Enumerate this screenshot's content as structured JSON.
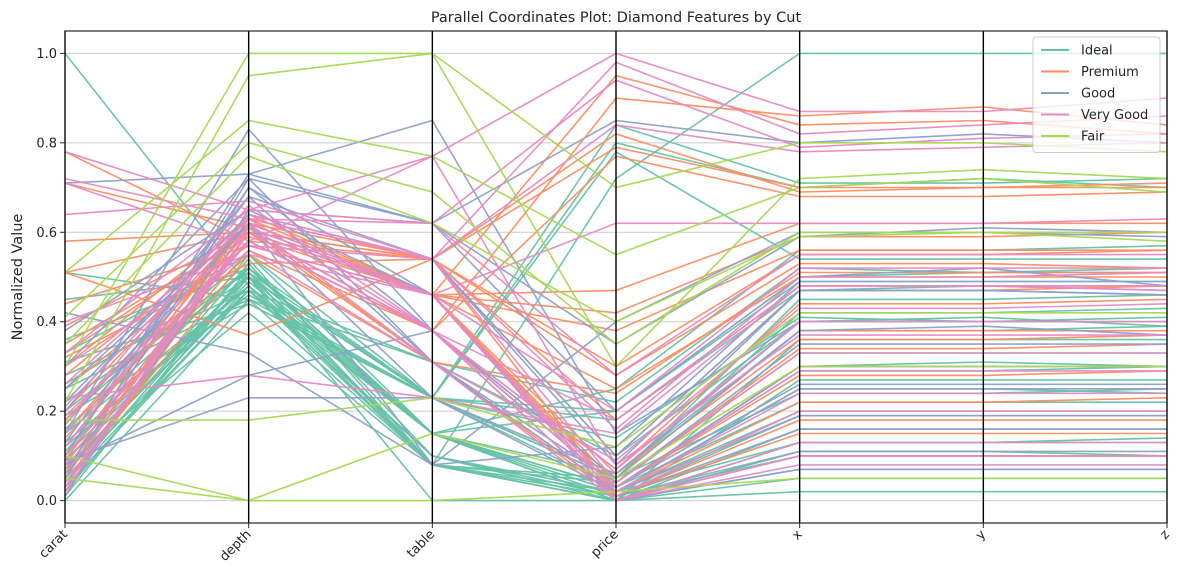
{
  "chart_data": {
    "type": "parallel_coordinates",
    "title": "Parallel Coordinates Plot: Diamond Features by Cut",
    "ylabel": "Normalized Value",
    "xlabel": "",
    "axes": [
      "carat",
      "depth",
      "table",
      "price",
      "x",
      "y",
      "z"
    ],
    "ylim": [
      -0.05,
      1.05
    ],
    "yticks": [
      0.0,
      0.2,
      0.4,
      0.6,
      0.8,
      1.0
    ],
    "ytick_labels": [
      "0.0",
      "0.2",
      "0.4",
      "0.6",
      "0.8",
      "1.0"
    ],
    "grid": "horizontal",
    "legend_position": "top-right",
    "series": [
      {
        "name": "Ideal",
        "color": "#66c2a5",
        "lines": [
          [
            1.0,
            0.48,
            0.08,
            0.72,
            1.0,
            1.0,
            1.0
          ],
          [
            0.51,
            0.45,
            0.23,
            0.8,
            0.7,
            0.72,
            0.7
          ],
          [
            0.45,
            0.5,
            0.23,
            0.84,
            0.71,
            0.71,
            0.72
          ],
          [
            0.12,
            0.48,
            0.15,
            0.0,
            0.36,
            0.36,
            0.36
          ],
          [
            0.04,
            0.47,
            0.1,
            0.01,
            0.11,
            0.11,
            0.1
          ],
          [
            0.06,
            0.53,
            0.1,
            0.02,
            0.13,
            0.13,
            0.14
          ],
          [
            0.2,
            0.52,
            0.23,
            0.05,
            0.45,
            0.45,
            0.46
          ],
          [
            0.25,
            0.45,
            0.31,
            0.1,
            0.4,
            0.41,
            0.39
          ],
          [
            0.33,
            0.55,
            0.15,
            0.2,
            0.5,
            0.51,
            0.52
          ],
          [
            0.08,
            0.42,
            0.08,
            0.02,
            0.25,
            0.25,
            0.24
          ],
          [
            0.1,
            0.5,
            0.15,
            0.03,
            0.29,
            0.29,
            0.3
          ],
          [
            0.15,
            0.48,
            0.08,
            0.04,
            0.33,
            0.33,
            0.33
          ],
          [
            0.01,
            0.52,
            0.15,
            0.0,
            0.05,
            0.05,
            0.05
          ],
          [
            0.03,
            0.47,
            0.08,
            0.01,
            0.1,
            0.1,
            0.1
          ],
          [
            0.18,
            0.55,
            0.23,
            0.05,
            0.42,
            0.42,
            0.43
          ],
          [
            0.0,
            0.45,
            0.08,
            0.0,
            0.02,
            0.02,
            0.02
          ],
          [
            0.09,
            0.5,
            0.0,
            0.0,
            0.27,
            0.27,
            0.27
          ],
          [
            0.22,
            0.5,
            0.23,
            0.18,
            0.47,
            0.48,
            0.47
          ],
          [
            0.07,
            0.49,
            0.15,
            0.02,
            0.2,
            0.2,
            0.2
          ],
          [
            0.28,
            0.47,
            0.31,
            0.22,
            0.52,
            0.51,
            0.51
          ],
          [
            0.13,
            0.46,
            0.23,
            0.03,
            0.3,
            0.31,
            0.3
          ],
          [
            0.02,
            0.5,
            0.08,
            0.0,
            0.07,
            0.07,
            0.07
          ],
          [
            0.36,
            0.52,
            0.15,
            0.25,
            0.56,
            0.56,
            0.57
          ],
          [
            0.05,
            0.48,
            0.1,
            0.0,
            0.16,
            0.16,
            0.16
          ],
          [
            0.31,
            0.44,
            0.23,
            0.78,
            0.54,
            0.54,
            0.54
          ],
          [
            0.11,
            0.54,
            0.08,
            0.05,
            0.24,
            0.24,
            0.25
          ],
          [
            0.16,
            0.52,
            0.15,
            0.06,
            0.38,
            0.38,
            0.39
          ],
          [
            0.04,
            0.51,
            0.08,
            0.0,
            0.13,
            0.13,
            0.13
          ],
          [
            0.26,
            0.51,
            0.23,
            0.2,
            0.49,
            0.49,
            0.49
          ],
          [
            0.09,
            0.47,
            0.15,
            0.03,
            0.22,
            0.22,
            0.22
          ],
          [
            0.19,
            0.44,
            0.23,
            0.14,
            0.41,
            0.4,
            0.41
          ],
          [
            0.06,
            0.51,
            0.15,
            0.01,
            0.19,
            0.19,
            0.19
          ]
        ]
      },
      {
        "name": "Premium",
        "color": "#fc8d62",
        "lines": [
          [
            0.78,
            0.58,
            0.38,
            0.9,
            0.86,
            0.88,
            0.84
          ],
          [
            0.71,
            0.61,
            0.46,
            0.95,
            0.84,
            0.85,
            0.82
          ],
          [
            0.51,
            0.6,
            0.54,
            0.79,
            0.7,
            0.7,
            0.7
          ],
          [
            0.33,
            0.6,
            0.54,
            0.3,
            0.55,
            0.55,
            0.56
          ],
          [
            0.3,
            0.63,
            0.46,
            0.25,
            0.5,
            0.5,
            0.5
          ],
          [
            0.2,
            0.62,
            0.54,
            0.1,
            0.47,
            0.47,
            0.48
          ],
          [
            0.14,
            0.58,
            0.38,
            0.05,
            0.38,
            0.38,
            0.38
          ],
          [
            0.09,
            0.64,
            0.46,
            0.03,
            0.28,
            0.28,
            0.29
          ],
          [
            0.04,
            0.55,
            0.31,
            0.01,
            0.18,
            0.18,
            0.18
          ],
          [
            0.39,
            0.6,
            0.46,
            0.42,
            0.59,
            0.59,
            0.6
          ],
          [
            0.58,
            0.6,
            0.38,
            0.77,
            0.68,
            0.68,
            0.69
          ],
          [
            0.25,
            0.58,
            0.54,
            0.18,
            0.48,
            0.48,
            0.48
          ],
          [
            0.02,
            0.6,
            0.38,
            0.0,
            0.1,
            0.1,
            0.1
          ],
          [
            0.12,
            0.62,
            0.46,
            0.04,
            0.34,
            0.34,
            0.35
          ],
          [
            0.32,
            0.53,
            0.54,
            0.28,
            0.53,
            0.53,
            0.52
          ],
          [
            0.07,
            0.6,
            0.31,
            0.02,
            0.22,
            0.22,
            0.23
          ],
          [
            0.44,
            0.57,
            0.46,
            0.47,
            0.62,
            0.62,
            0.62
          ],
          [
            0.18,
            0.6,
            0.38,
            0.07,
            0.44,
            0.44,
            0.45
          ],
          [
            0.05,
            0.63,
            0.54,
            0.01,
            0.15,
            0.15,
            0.15
          ],
          [
            0.35,
            0.59,
            0.46,
            0.38,
            0.56,
            0.56,
            0.56
          ],
          [
            0.1,
            0.56,
            0.38,
            0.03,
            0.3,
            0.3,
            0.3
          ],
          [
            0.51,
            0.37,
            0.54,
            0.82,
            0.69,
            0.7,
            0.71
          ],
          [
            0.28,
            0.61,
            0.31,
            0.24,
            0.51,
            0.51,
            0.51
          ],
          [
            0.15,
            0.62,
            0.46,
            0.06,
            0.36,
            0.36,
            0.37
          ]
        ]
      },
      {
        "name": "Good",
        "color": "#8da0cb",
        "lines": [
          [
            0.71,
            0.73,
            0.62,
            0.85,
            0.8,
            0.82,
            0.8
          ],
          [
            0.1,
            0.73,
            0.85,
            0.15,
            0.4,
            0.4,
            0.4
          ],
          [
            0.3,
            0.72,
            0.62,
            0.2,
            0.5,
            0.52,
            0.48
          ],
          [
            0.2,
            0.68,
            0.54,
            0.1,
            0.47,
            0.47,
            0.46
          ],
          [
            0.15,
            0.83,
            0.38,
            0.05,
            0.38,
            0.39,
            0.37
          ],
          [
            0.08,
            0.28,
            0.38,
            0.03,
            0.26,
            0.26,
            0.26
          ],
          [
            0.09,
            0.23,
            0.23,
            0.02,
            0.25,
            0.25,
            0.25
          ],
          [
            0.25,
            0.62,
            0.08,
            0.12,
            0.49,
            0.49,
            0.49
          ],
          [
            0.05,
            0.7,
            0.46,
            0.01,
            0.16,
            0.16,
            0.16
          ],
          [
            0.38,
            0.65,
            0.62,
            0.35,
            0.59,
            0.61,
            0.6
          ],
          [
            0.13,
            0.68,
            0.31,
            0.04,
            0.35,
            0.35,
            0.35
          ],
          [
            0.03,
            0.6,
            0.46,
            0.0,
            0.11,
            0.11,
            0.11
          ],
          [
            0.22,
            0.64,
            0.54,
            0.08,
            0.47,
            0.47,
            0.46
          ],
          [
            0.42,
            0.33,
            0.08,
            0.4,
            0.6,
            0.6,
            0.59
          ],
          [
            0.1,
            0.7,
            0.38,
            0.03,
            0.3,
            0.3,
            0.3
          ],
          [
            0.06,
            0.72,
            0.31,
            0.02,
            0.19,
            0.19,
            0.19
          ],
          [
            0.17,
            0.62,
            0.23,
            0.06,
            0.4,
            0.4,
            0.4
          ],
          [
            0.01,
            0.65,
            0.46,
            0.0,
            0.07,
            0.07,
            0.07
          ]
        ]
      },
      {
        "name": "Very Good",
        "color": "#e78ac3",
        "lines": [
          [
            0.78,
            0.65,
            0.77,
            1.0,
            0.87,
            0.87,
            0.9
          ],
          [
            0.71,
            0.57,
            0.54,
            0.98,
            0.82,
            0.84,
            0.86
          ],
          [
            0.72,
            0.63,
            0.62,
            0.94,
            0.79,
            0.81,
            0.82
          ],
          [
            0.64,
            0.67,
            0.54,
            0.84,
            0.78,
            0.79,
            0.8
          ],
          [
            0.4,
            0.55,
            0.46,
            0.62,
            0.62,
            0.62,
            0.63
          ],
          [
            0.21,
            0.63,
            0.38,
            0.18,
            0.48,
            0.48,
            0.48
          ],
          [
            0.15,
            0.58,
            0.77,
            0.08,
            0.37,
            0.37,
            0.37
          ],
          [
            0.23,
            0.28,
            0.23,
            0.15,
            0.48,
            0.48,
            0.47
          ],
          [
            0.08,
            0.61,
            0.46,
            0.02,
            0.24,
            0.24,
            0.24
          ],
          [
            0.12,
            0.64,
            0.54,
            0.04,
            0.33,
            0.33,
            0.33
          ],
          [
            0.04,
            0.6,
            0.38,
            0.0,
            0.13,
            0.13,
            0.13
          ],
          [
            0.3,
            0.57,
            0.46,
            0.2,
            0.52,
            0.52,
            0.52
          ],
          [
            0.02,
            0.62,
            0.31,
            0.0,
            0.08,
            0.08,
            0.08
          ],
          [
            0.17,
            0.66,
            0.38,
            0.07,
            0.4,
            0.4,
            0.4
          ],
          [
            0.06,
            0.6,
            0.46,
            0.01,
            0.2,
            0.2,
            0.2
          ],
          [
            0.26,
            0.63,
            0.54,
            0.16,
            0.5,
            0.5,
            0.51
          ],
          [
            0.1,
            0.58,
            0.38,
            0.03,
            0.29,
            0.29,
            0.29
          ],
          [
            0.33,
            0.65,
            0.62,
            0.28,
            0.55,
            0.55,
            0.55
          ],
          [
            0.03,
            0.62,
            0.46,
            0.0,
            0.1,
            0.1,
            0.1
          ],
          [
            0.19,
            0.56,
            0.31,
            0.09,
            0.43,
            0.43,
            0.44
          ]
        ]
      },
      {
        "name": "Fair",
        "color": "#a6d854",
        "lines": [
          [
            0.22,
            0.95,
            1.0,
            0.3,
            0.72,
            0.74,
            0.72
          ],
          [
            0.3,
            1.0,
            1.0,
            0.7,
            0.8,
            0.8,
            0.78
          ],
          [
            0.51,
            0.85,
            0.77,
            0.55,
            0.7,
            0.72,
            0.69
          ],
          [
            0.05,
            0.0,
            0.0,
            0.02,
            0.05,
            0.05,
            0.05
          ],
          [
            0.18,
            0.18,
            0.23,
            0.12,
            0.42,
            0.42,
            0.42
          ],
          [
            0.1,
            0.0,
            0.15,
            0.05,
            0.3,
            0.3,
            0.3
          ],
          [
            0.41,
            0.8,
            0.69,
            0.35,
            0.6,
            0.6,
            0.6
          ],
          [
            0.35,
            0.77,
            0.62,
            0.4,
            0.59,
            0.6,
            0.58
          ]
        ]
      }
    ]
  }
}
